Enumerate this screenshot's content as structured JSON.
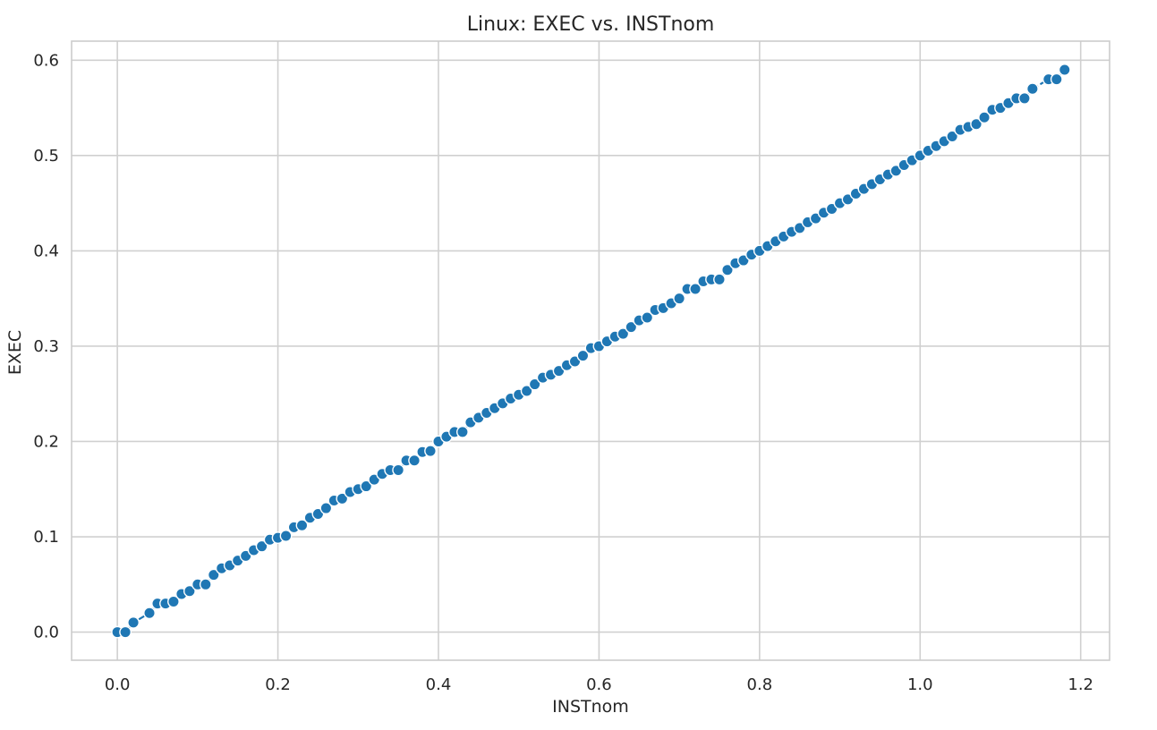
{
  "chart_data": {
    "type": "line",
    "title": "Linux: EXEC vs. INSTnom",
    "xlabel": "INSTnom",
    "ylabel": "EXEC",
    "xlim": [
      -0.057,
      1.236
    ],
    "ylim": [
      -0.0295,
      0.62
    ],
    "xticks": [
      0.0,
      0.2,
      0.4,
      0.6,
      0.8,
      1.0,
      1.2
    ],
    "yticks": [
      0.0,
      0.1,
      0.2,
      0.3,
      0.4,
      0.5,
      0.6
    ],
    "xtick_labels": [
      "0.0",
      "0.2",
      "0.4",
      "0.6",
      "0.8",
      "1.0",
      "1.2"
    ],
    "ytick_labels": [
      "0.0",
      "0.1",
      "0.2",
      "0.3",
      "0.4",
      "0.5",
      "0.6"
    ],
    "grid": true,
    "legend": "none",
    "colors": {
      "series": "#1f77b4",
      "grid": "#d0d0d0",
      "text": "#262626"
    },
    "series": [
      {
        "marker": "circle",
        "x": [
          0.0,
          0.01,
          0.02,
          0.04,
          0.05,
          0.06,
          0.07,
          0.08,
          0.09,
          0.1,
          0.11,
          0.12,
          0.13,
          0.14,
          0.15,
          0.16,
          0.17,
          0.18,
          0.19,
          0.2,
          0.21,
          0.22,
          0.23,
          0.24,
          0.25,
          0.26,
          0.27,
          0.28,
          0.29,
          0.3,
          0.31,
          0.32,
          0.33,
          0.34,
          0.35,
          0.36,
          0.37,
          0.38,
          0.39,
          0.4,
          0.41,
          0.42,
          0.43,
          0.44,
          0.45,
          0.46,
          0.47,
          0.48,
          0.49,
          0.5,
          0.51,
          0.52,
          0.53,
          0.54,
          0.55,
          0.56,
          0.57,
          0.58,
          0.59,
          0.6,
          0.61,
          0.62,
          0.63,
          0.64,
          0.65,
          0.66,
          0.67,
          0.68,
          0.69,
          0.7,
          0.71,
          0.72,
          0.73,
          0.74,
          0.75,
          0.76,
          0.77,
          0.78,
          0.79,
          0.8,
          0.81,
          0.82,
          0.83,
          0.84,
          0.85,
          0.86,
          0.87,
          0.88,
          0.89,
          0.9,
          0.91,
          0.92,
          0.93,
          0.94,
          0.95,
          0.96,
          0.97,
          0.98,
          0.99,
          1.0,
          1.01,
          1.02,
          1.03,
          1.04,
          1.05,
          1.06,
          1.07,
          1.08,
          1.09,
          1.1,
          1.11,
          1.12,
          1.13,
          1.14,
          1.16,
          1.17,
          1.18
        ],
        "y": [
          0.0,
          0.0,
          0.01,
          0.02,
          0.03,
          0.03,
          0.032,
          0.04,
          0.043,
          0.05,
          0.05,
          0.06,
          0.067,
          0.07,
          0.075,
          0.08,
          0.086,
          0.09,
          0.097,
          0.099,
          0.101,
          0.11,
          0.112,
          0.12,
          0.124,
          0.13,
          0.138,
          0.14,
          0.147,
          0.15,
          0.153,
          0.16,
          0.166,
          0.17,
          0.17,
          0.18,
          0.18,
          0.189,
          0.19,
          0.2,
          0.205,
          0.21,
          0.21,
          0.22,
          0.225,
          0.23,
          0.235,
          0.24,
          0.245,
          0.249,
          0.253,
          0.26,
          0.267,
          0.27,
          0.274,
          0.28,
          0.284,
          0.29,
          0.298,
          0.3,
          0.305,
          0.31,
          0.313,
          0.32,
          0.327,
          0.33,
          0.338,
          0.34,
          0.345,
          0.35,
          0.36,
          0.36,
          0.368,
          0.37,
          0.37,
          0.38,
          0.387,
          0.39,
          0.396,
          0.4,
          0.405,
          0.41,
          0.415,
          0.42,
          0.424,
          0.43,
          0.434,
          0.44,
          0.444,
          0.45,
          0.454,
          0.46,
          0.465,
          0.47,
          0.475,
          0.48,
          0.484,
          0.49,
          0.495,
          0.5,
          0.505,
          0.51,
          0.515,
          0.52,
          0.527,
          0.53,
          0.533,
          0.54,
          0.548,
          0.55,
          0.555,
          0.56,
          0.56,
          0.57,
          0.58,
          0.58,
          0.59
        ]
      }
    ]
  }
}
